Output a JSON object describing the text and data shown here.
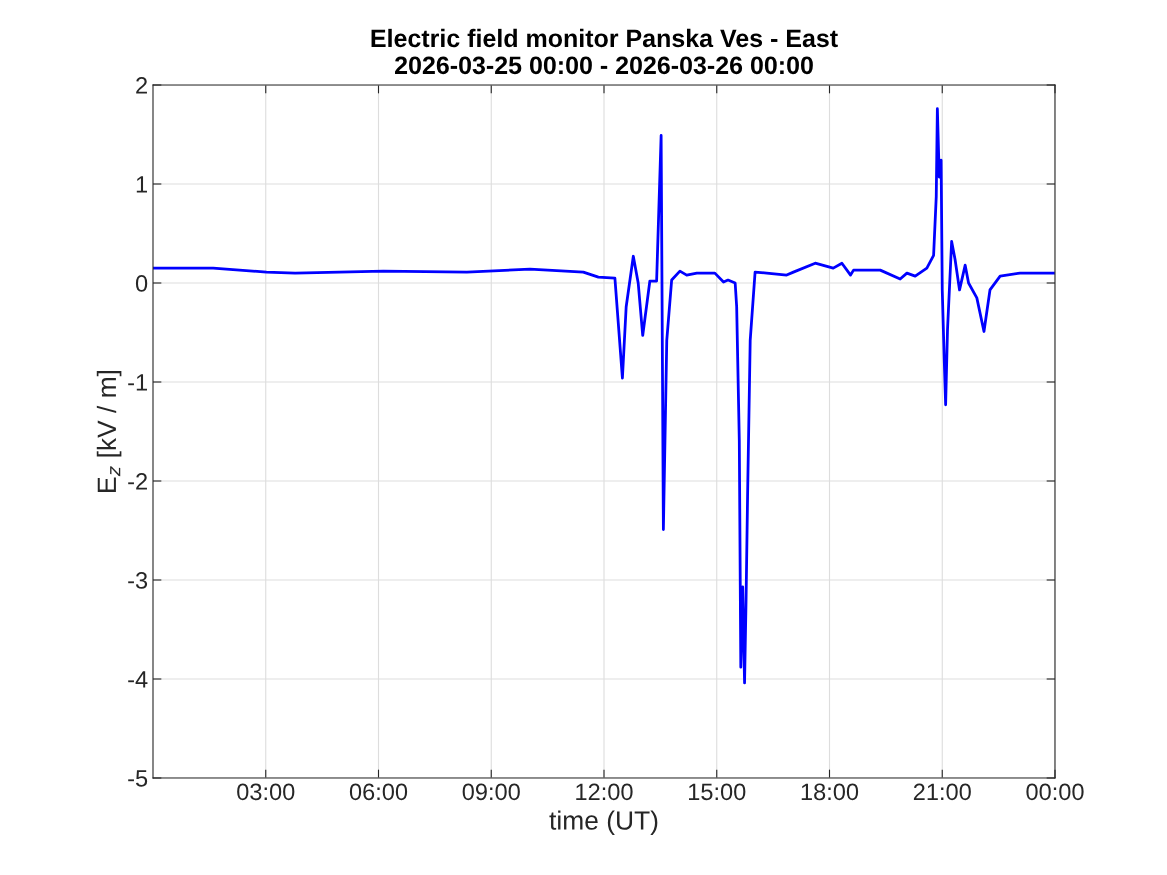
{
  "chart_data": {
    "type": "line",
    "title": "Electric field monitor Panska Ves - East\n2026-03-25 00:00 - 2026-03-26 00:00",
    "xlabel": "time (UT)",
    "ylabel": "E$_{z}$ [kV / m]",
    "x": [
      0,
      1.6,
      3.02,
      3.78,
      6.13,
      8.35,
      10.03,
      11.45,
      11.85,
      12.29,
      12.49,
      12.59,
      12.78,
      12.91,
      13.03,
      13.22,
      13.4,
      13.52,
      13.58,
      13.67,
      13.8,
      14.02,
      14.2,
      14.47,
      14.95,
      15.18,
      15.3,
      15.49,
      15.53,
      15.6,
      15.64,
      15.69,
      15.74,
      15.78,
      15.82,
      15.89,
      16.02,
      16.33,
      16.86,
      17.04,
      17.62,
      18.1,
      18.33,
      18.56,
      18.64,
      19.35,
      19.88,
      20.06,
      20.28,
      20.59,
      20.77,
      20.84,
      20.87,
      20.92,
      20.97,
      21.0,
      21.05,
      21.09,
      21.14,
      21.25,
      21.34,
      21.46,
      21.61,
      21.7,
      21.92,
      22.11,
      22.27,
      22.54,
      23.07,
      23.96
    ],
    "series": [
      {
        "color": "#0000ff",
        "values": [
          0.15,
          0.15,
          0.11,
          0.1,
          0.12,
          0.11,
          0.14,
          0.11,
          0.06,
          0.05,
          -0.96,
          -0.24,
          0.27,
          0.0,
          -0.53,
          0.02,
          0.02,
          1.49,
          -2.49,
          -0.58,
          0.03,
          0.12,
          0.08,
          0.1,
          0.1,
          0.01,
          0.03,
          0.0,
          -0.24,
          -1.59,
          -3.88,
          -3.07,
          -4.04,
          -3.2,
          -2.16,
          -0.58,
          0.11,
          0.1,
          0.08,
          0.11,
          0.2,
          0.15,
          0.2,
          0.08,
          0.13,
          0.13,
          0.04,
          0.1,
          0.07,
          0.15,
          0.28,
          0.87,
          1.76,
          1.07,
          1.24,
          -0.07,
          -0.74,
          -1.23,
          -0.47,
          0.42,
          0.24,
          -0.07,
          0.18,
          0.0,
          -0.15,
          -0.49,
          -0.07,
          0.07,
          0.1,
          0.1
        ]
      }
    ],
    "xlim": [
      0,
      24
    ],
    "xticks": [
      {
        "value": 3,
        "label": "03:00"
      },
      {
        "value": 6,
        "label": "06:00"
      },
      {
        "value": 9,
        "label": "09:00"
      },
      {
        "value": 12,
        "label": "12:00"
      },
      {
        "value": 15,
        "label": "15:00"
      },
      {
        "value": 18,
        "label": "18:00"
      },
      {
        "value": 21,
        "label": "21:00"
      },
      {
        "value": 24,
        "label": "00:00"
      }
    ],
    "ylim": [
      -5,
      2
    ],
    "yticks": [
      -5,
      -4,
      -3,
      -2,
      -1,
      0,
      1,
      2
    ],
    "grid": true,
    "marker": "none",
    "line_style": "solid"
  }
}
